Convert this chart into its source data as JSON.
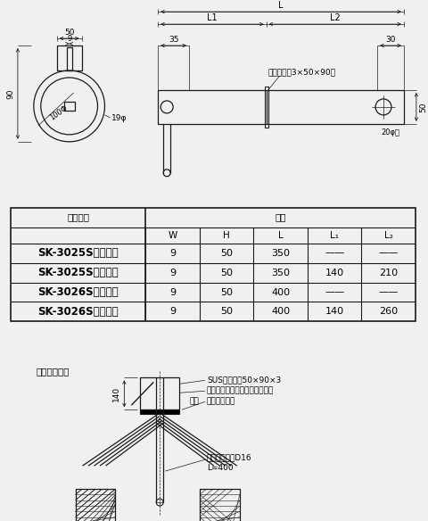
{
  "bg_color": "#f0f0f0",
  "line_color": "#1a1a1a",
  "table_rows": [
    {
      "code": "SK-3025S（自在）",
      "W": "9",
      "H": "50",
      "L": "350",
      "L1": "——",
      "Le": "——"
    },
    {
      "code": "SK-3025S（固定）",
      "W": "9",
      "H": "50",
      "L": "350",
      "L1": "140",
      "Le": "210"
    },
    {
      "code": "SK-3026S（自在）",
      "W": "9",
      "H": "50",
      "L": "400",
      "L1": "——",
      "Le": "——"
    },
    {
      "code": "SK-3026S（固定）",
      "W": "9",
      "H": "50",
      "L": "400",
      "L1": "140",
      "Le": "260"
    }
  ],
  "label_shohin": "商品記号",
  "label_sunpo": "寸法",
  "col_headers": [
    "W",
    "H",
    "L",
    "L₁",
    "L₂"
  ],
  "ref_title": "参考納まり図",
  "sus_label": "SUSプレート50×90×3",
  "sealing_label": "シーリング（アスファルト系）",
  "shiku_label": "四周",
  "muneyo_label": "棟用シングル",
  "anchor_label": "アンカー鉄筋D16",
  "anchor_label2": "L=400",
  "plate_label": "プレート（3×50×90）",
  "hole_label": "20φ穴"
}
